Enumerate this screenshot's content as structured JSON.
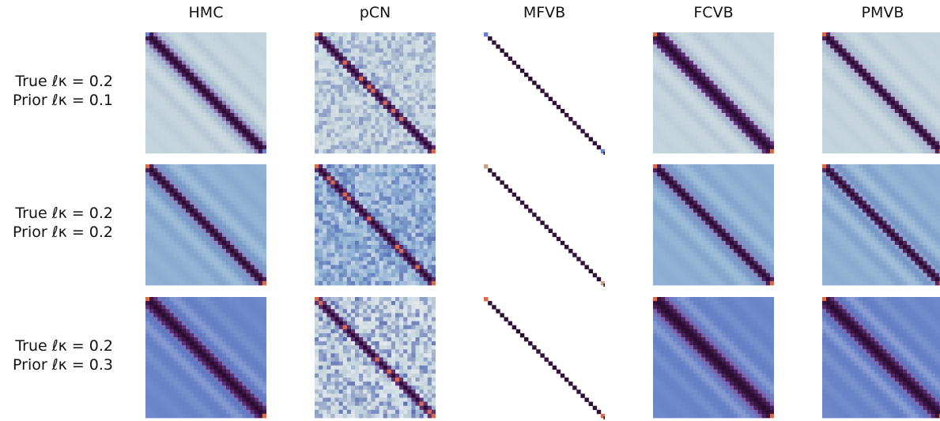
{
  "columns": [
    {
      "title": "HMC"
    },
    {
      "title": "pCN"
    },
    {
      "title": "MFVB"
    },
    {
      "title": "FCVB"
    },
    {
      "title": "PMVB"
    }
  ],
  "rows": [
    {
      "true_label": "True ℓκ = 0.2",
      "prior_label": "Prior ℓκ = 0.1"
    },
    {
      "true_label": "True ℓκ = 0.2",
      "prior_label": "Prior ℓκ = 0.2"
    },
    {
      "true_label": "True ℓκ = 0.2",
      "prior_label": "Prior ℓκ = 0.3"
    }
  ],
  "colors": {
    "colormap": [
      "#2a0a2e",
      "#5b2a6e",
      "#8c6bb4",
      "#c9d6df",
      "#8fa6c9",
      "#5f7fc0",
      "#6a8bc6"
    ],
    "offdiag_light": "#c4d4dc",
    "offdiag_medium": "#8fb0d3",
    "offdiag_deep": "#6c86c9",
    "diag_dark": "#2b0c30",
    "endpoint_orange": "#d96a4a",
    "endpoint_blue": "#6d7fd0",
    "endpoint_tan": "#c9a08a",
    "background": "#ffffff"
  },
  "chart_data": {
    "type": "heatmap",
    "matrix_size": 30,
    "grid": false,
    "panels": [
      {
        "row": 0,
        "col": 0,
        "method": "HMC",
        "true_l": 0.2,
        "prior_l": 0.1,
        "background": "light",
        "band_width": 1.6,
        "ripple": 0.25,
        "noise": 0.0,
        "diag_only": false,
        "end_color": "blue"
      },
      {
        "row": 0,
        "col": 1,
        "method": "pCN",
        "true_l": 0.2,
        "prior_l": 0.1,
        "background": "light",
        "band_width": 1.1,
        "ripple": 0.15,
        "noise": 0.35,
        "diag_only": false,
        "end_color": "orange"
      },
      {
        "row": 0,
        "col": 2,
        "method": "MFVB",
        "true_l": 0.2,
        "prior_l": 0.1,
        "background": "white",
        "band_width": 0.0,
        "ripple": 0.0,
        "noise": 0.0,
        "diag_only": true,
        "end_color": "blue"
      },
      {
        "row": 0,
        "col": 3,
        "method": "FCVB",
        "true_l": 0.2,
        "prior_l": 0.1,
        "background": "light",
        "band_width": 1.9,
        "ripple": 0.25,
        "noise": 0.0,
        "diag_only": false,
        "end_color": "orange"
      },
      {
        "row": 0,
        "col": 4,
        "method": "PMVB",
        "true_l": 0.2,
        "prior_l": 0.1,
        "background": "light",
        "band_width": 1.3,
        "ripple": 0.2,
        "noise": 0.0,
        "diag_only": false,
        "end_color": "orange"
      },
      {
        "row": 1,
        "col": 0,
        "method": "HMC",
        "true_l": 0.2,
        "prior_l": 0.2,
        "background": "medium",
        "band_width": 1.4,
        "ripple": 0.3,
        "noise": 0.0,
        "diag_only": false,
        "end_color": "orange"
      },
      {
        "row": 1,
        "col": 1,
        "method": "pCN",
        "true_l": 0.2,
        "prior_l": 0.2,
        "background": "medium",
        "band_width": 1.1,
        "ripple": 0.15,
        "noise": 0.45,
        "diag_only": false,
        "end_color": "orange"
      },
      {
        "row": 1,
        "col": 2,
        "method": "MFVB",
        "true_l": 0.2,
        "prior_l": 0.2,
        "background": "white",
        "band_width": 0.0,
        "ripple": 0.0,
        "noise": 0.0,
        "diag_only": true,
        "end_color": "tan"
      },
      {
        "row": 1,
        "col": 3,
        "method": "FCVB",
        "true_l": 0.2,
        "prior_l": 0.2,
        "background": "medium",
        "band_width": 1.4,
        "ripple": 0.3,
        "noise": 0.0,
        "diag_only": false,
        "end_color": "orange"
      },
      {
        "row": 1,
        "col": 4,
        "method": "PMVB",
        "true_l": 0.2,
        "prior_l": 0.2,
        "background": "medium",
        "band_width": 1.2,
        "ripple": 0.35,
        "noise": 0.0,
        "diag_only": false,
        "end_color": "orange"
      },
      {
        "row": 2,
        "col": 0,
        "method": "HMC",
        "true_l": 0.2,
        "prior_l": 0.3,
        "background": "deep",
        "band_width": 2.0,
        "ripple": 0.35,
        "noise": 0.0,
        "diag_only": false,
        "end_color": "orange"
      },
      {
        "row": 2,
        "col": 1,
        "method": "pCN",
        "true_l": 0.2,
        "prior_l": 0.3,
        "background": "light",
        "band_width": 1.0,
        "ripple": 0.15,
        "noise": 0.55,
        "diag_only": false,
        "end_color": "orange"
      },
      {
        "row": 2,
        "col": 2,
        "method": "MFVB",
        "true_l": 0.2,
        "prior_l": 0.3,
        "background": "white",
        "band_width": 0.0,
        "ripple": 0.0,
        "noise": 0.0,
        "diag_only": true,
        "end_color": "orange"
      },
      {
        "row": 2,
        "col": 3,
        "method": "FCVB",
        "true_l": 0.2,
        "prior_l": 0.3,
        "background": "deep",
        "band_width": 2.6,
        "ripple": 0.35,
        "noise": 0.0,
        "diag_only": false,
        "end_color": "orange"
      },
      {
        "row": 2,
        "col": 4,
        "method": "PMVB",
        "true_l": 0.2,
        "prior_l": 0.3,
        "background": "deep",
        "band_width": 2.2,
        "ripple": 0.4,
        "noise": 0.0,
        "diag_only": false,
        "end_color": "orange"
      }
    ]
  }
}
